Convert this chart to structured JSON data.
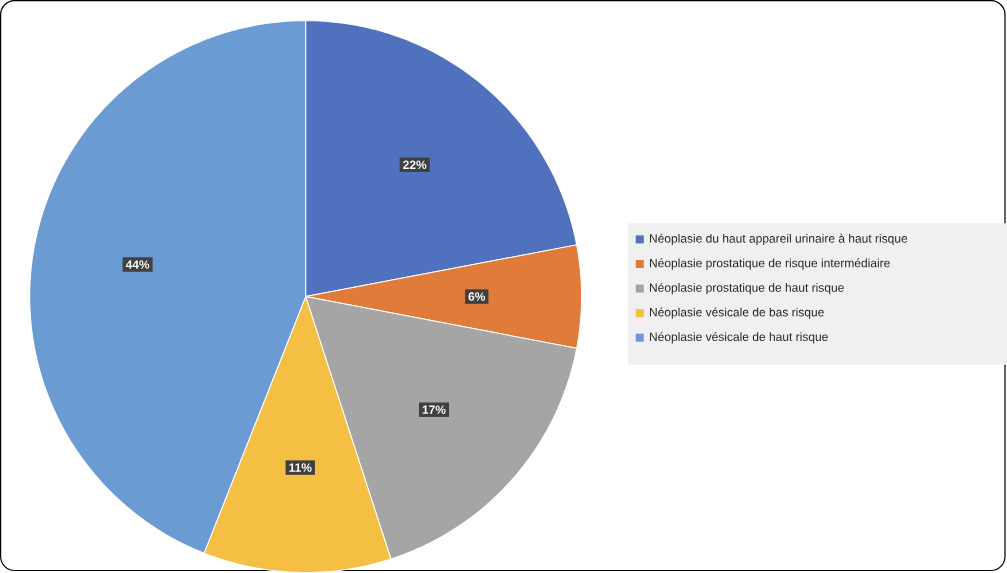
{
  "chart_data": {
    "type": "pie",
    "categories": [
      "Néoplasie du haut appareil urinaire à haut risque",
      "Néoplasie prostatique de risque intermédiaire",
      "Néoplasie prostatique de haut risque",
      "Néoplasie vésicale de bas risque",
      "Néoplasie vésicale de haut risque"
    ],
    "values": [
      22,
      6,
      17,
      11,
      44
    ],
    "value_labels": [
      "22%",
      "6%",
      "17%",
      "11%",
      "44%"
    ],
    "colors": [
      "#4f71be",
      "#e07b39",
      "#a5a5a5",
      "#f4bf42",
      "#6a9bd2"
    ],
    "legend": "right"
  }
}
